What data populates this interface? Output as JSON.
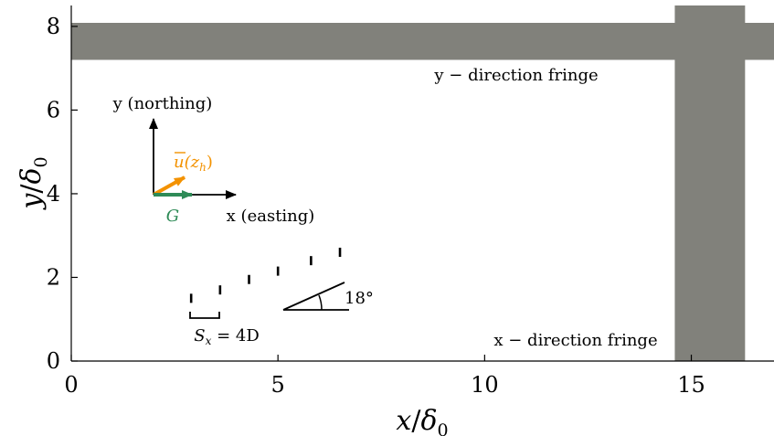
{
  "axes": {
    "x_label_var": "x",
    "x_label_sub": "0",
    "y_label_var": "y",
    "y_label_sub": "0",
    "label_denominator": "δ",
    "x_ticks": [
      0,
      5,
      10,
      15
    ],
    "y_ticks": [
      0,
      2,
      4,
      6,
      8
    ],
    "xlim": [
      0,
      17
    ],
    "ylim": [
      0,
      8.5
    ]
  },
  "annotations": {
    "y_fringe_label": "y − direction fringe",
    "x_fringe_label": "x − direction fringe",
    "y_axis_label": "y (northing)",
    "x_axis_label": "x (easting)",
    "velocity_label": "u(z",
    "velocity_sub": "h",
    "velocity_close": ")",
    "g_label": "G",
    "spacing_label": "S",
    "spacing_sub": "x",
    "spacing_value": " = 4D",
    "angle_label": "18°"
  },
  "colors": {
    "fringe": "#81817b",
    "velocity_arrow": "#f39200",
    "g_arrow": "#2e8b57",
    "ink": "#000000"
  },
  "diagram_data": {
    "y_fringe_region": {
      "x": [
        0,
        17
      ],
      "y": [
        7.2,
        8.5
      ]
    },
    "x_fringe_region": {
      "x": [
        14.6,
        16.3
      ],
      "y": [
        0,
        8.5
      ]
    },
    "compass_origin": {
      "x": 2.0,
      "y": 4.0
    },
    "turbines": [
      {
        "x": 2.9,
        "y": 1.5
      },
      {
        "x": 3.6,
        "y": 1.7
      },
      {
        "x": 4.3,
        "y": 1.95
      },
      {
        "x": 5.0,
        "y": 2.15
      },
      {
        "x": 5.8,
        "y": 2.4
      },
      {
        "x": 6.5,
        "y": 2.6
      }
    ],
    "angle_degrees": 18
  }
}
